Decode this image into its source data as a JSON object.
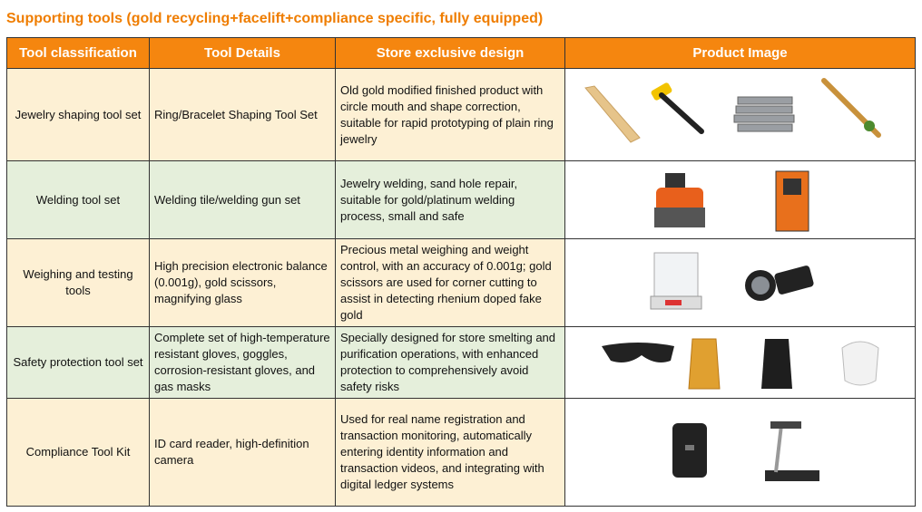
{
  "title": "Supporting tools (gold recycling+facelift+compliance specific, fully equipped)",
  "table": {
    "header": [
      "Tool classification",
      "Tool Details",
      "Store exclusive design",
      "Product Image"
    ],
    "rows": [
      [
        "Jewelry shaping tool set",
        "Ring/Bracelet Shaping Tool Set",
        "Old gold modified finished product with circle mouth and shape correction, suitable for rapid prototyping of plain ring jewelry"
      ],
      [
        "Welding tool set",
        "Welding tile/welding gun set",
        "Jewelry welding, sand hole repair, suitable for gold/platinum welding process, small and safe"
      ],
      [
        "Weighing and testing tools",
        "High precision electronic balance (0.001g), gold scissors, magnifying glass",
        "Precious metal weighing and weight control, with an accuracy of 0.001g; gold scissors are used for corner cutting to assist in detecting rhenium doped fake gold"
      ],
      [
        "Safety protection tool set",
        "Complete set of high-temperature resistant gloves, goggles, corrosion-resistant gloves, and gas masks",
        "Specially designed for store smelting and purification operations, with enhanced protection to comprehensively avoid safety risks"
      ],
      [
        "Compliance Tool Kit",
        "ID card reader, high-definition camera",
        "Used for real name registration and transaction monitoring, automatically entering identity information and transaction videos, and integrating with digital ledger systems"
      ]
    ]
  }
}
